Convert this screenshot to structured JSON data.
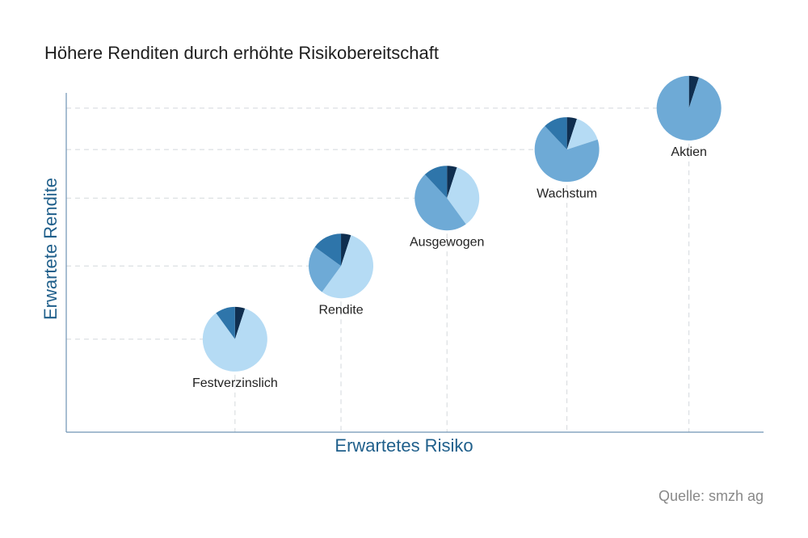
{
  "title": "Höhere Renditen durch erhöhte Risikobereitschaft",
  "source": "Quelle: smzh ag",
  "chart_data": {
    "type": "pie-scatter",
    "x_label": "Erwartetes Risiko",
    "y_label": "Erwartete Rendite",
    "xlim": [
      0,
      100
    ],
    "ylim": [
      0,
      100
    ],
    "colors": [
      "#0f2e4f",
      "#b5dbf4",
      "#6eaad6",
      "#2e75aa"
    ],
    "points": [
      {
        "label": "Festverzinslich",
        "x": 24.2,
        "y": 27.4,
        "shares": [
          5,
          85,
          0,
          10
        ]
      },
      {
        "label": "Rendite",
        "x": 39.4,
        "y": 49.0,
        "shares": [
          5,
          55,
          25,
          15
        ]
      },
      {
        "label": "Ausgewogen",
        "x": 54.6,
        "y": 69.0,
        "shares": [
          5,
          35,
          48,
          12
        ]
      },
      {
        "label": "Wachstum",
        "x": 71.8,
        "y": 83.3,
        "shares": [
          5,
          15,
          68,
          12
        ]
      },
      {
        "label": "Aktien",
        "x": 89.3,
        "y": 95.5,
        "shares": [
          5,
          0,
          95,
          0
        ]
      }
    ]
  }
}
